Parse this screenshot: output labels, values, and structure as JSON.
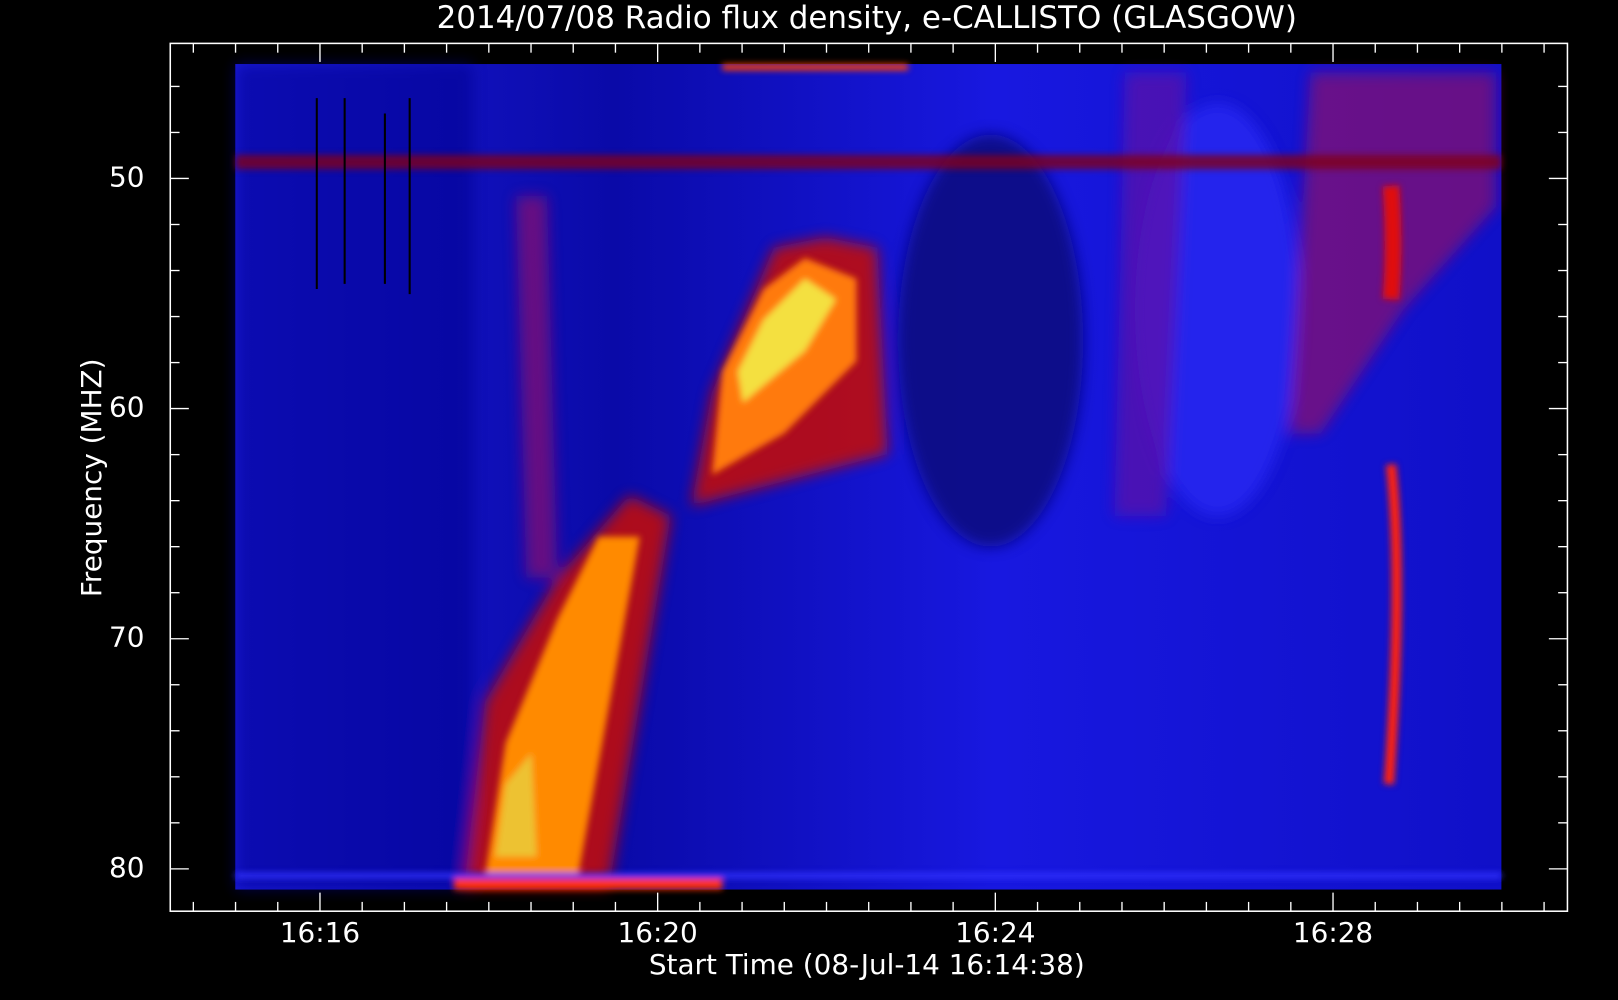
{
  "chart_data": {
    "type": "spectrogram",
    "title": "2014/07/08  Radio flux density, e-CALLISTO (GLASGOW)",
    "xlabel": "Start Time (08-Jul-14 16:14:38)",
    "ylabel": "Frequency (MHZ)",
    "xlim": [
      58453.6,
      59446.6
    ],
    "xticks": [
      {
        "value": 58560,
        "label": "16:16"
      },
      {
        "value": 58800,
        "label": "16:20"
      },
      {
        "value": 59040,
        "label": "16:24"
      },
      {
        "value": 59280,
        "label": "16:28"
      }
    ],
    "xminorticks": [
      58470,
      58500,
      58530,
      58590,
      58620,
      58650,
      58680,
      58710,
      58740,
      58770,
      58830,
      58860,
      58890,
      58920,
      58950,
      58980,
      59010,
      59070,
      59100,
      59130,
      59160,
      59190,
      59220,
      59250,
      59310,
      59340,
      59370,
      59400,
      59430
    ],
    "ylim": [
      81.84,
      44.13
    ],
    "yticks": [
      50,
      60,
      70,
      80
    ],
    "yminorticks": [
      46,
      48,
      52,
      54,
      56,
      58,
      62,
      64,
      66,
      68,
      72,
      74,
      76,
      78
    ]
  }
}
